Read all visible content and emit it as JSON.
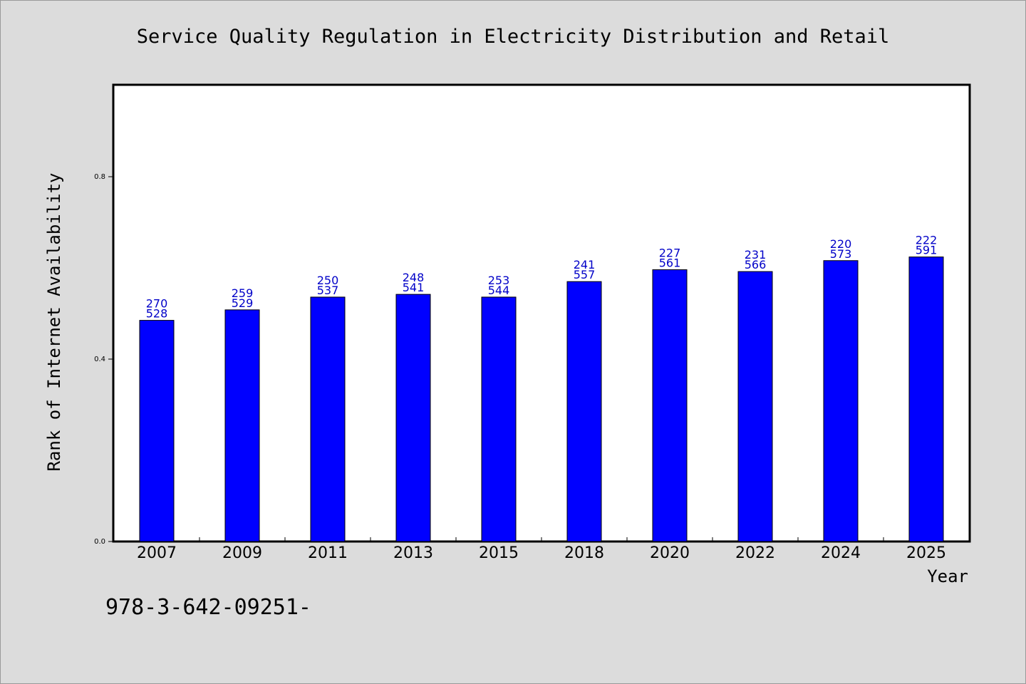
{
  "chart_data": {
    "type": "bar",
    "title": "Service Quality Regulation in Electricity Distribution and Retail",
    "xlabel": "Year",
    "ylabel": "Rank of Internet Availability",
    "footnote": "978-3-642-09251-",
    "categories": [
      "2007",
      "2009",
      "2011",
      "2013",
      "2015",
      "2018",
      "2020",
      "2022",
      "2024",
      "2025"
    ],
    "values": [
      0.485,
      0.508,
      0.536,
      0.542,
      0.536,
      0.57,
      0.596,
      0.592,
      0.616,
      0.624
    ],
    "label_top": [
      "270",
      "259",
      "250",
      "248",
      "253",
      "241",
      "227",
      "231",
      "220",
      "222"
    ],
    "label_bottom": [
      "528",
      "529",
      "537",
      "541",
      "544",
      "557",
      "561",
      "566",
      "573",
      "591"
    ],
    "y_ticks": [
      "0.0",
      "0.4",
      "0.8"
    ],
    "ylim": [
      0.0,
      1.0
    ],
    "grid": false,
    "colors": {
      "bar": "#0000ff",
      "label": "#0000c8",
      "background": "#dcdcdc",
      "plot": "#ffffff"
    }
  }
}
